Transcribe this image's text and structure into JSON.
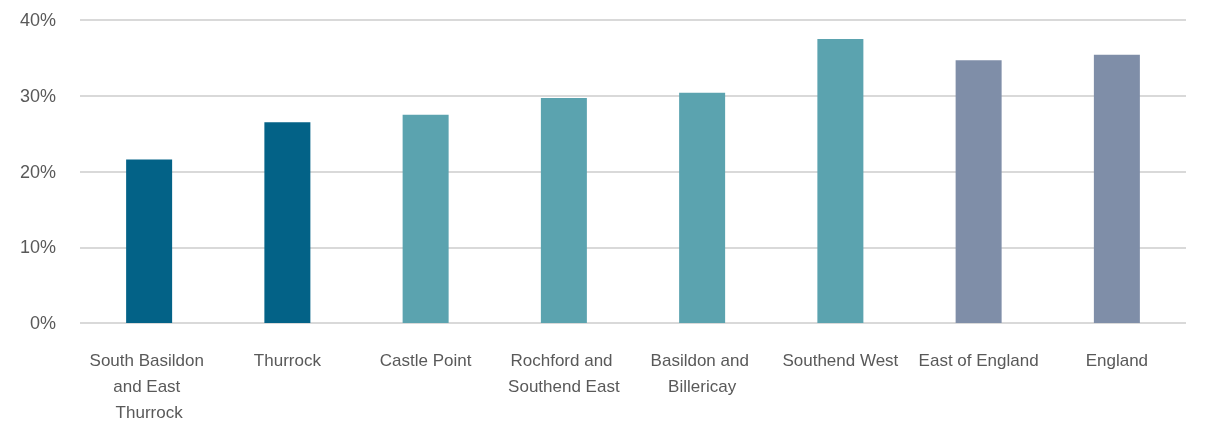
{
  "chart_data": {
    "type": "bar",
    "categories": [
      "South Basildon and East Thurrock",
      "Thurrock",
      "Castle Point",
      "Rochford and Southend East",
      "Basildon and Billericay",
      "Southend West",
      "East of England",
      "England"
    ],
    "values": [
      21.6,
      26.5,
      27.5,
      29.7,
      30.4,
      37.5,
      34.7,
      35.4
    ],
    "colors": [
      "#036287",
      "#036287",
      "#5ba3af",
      "#5ba3af",
      "#5ba3af",
      "#5ba3af",
      "#7f8ea8",
      "#7f8ea8"
    ],
    "ylim": [
      0,
      40
    ],
    "yticks": [
      {
        "value": 0,
        "label": "0%"
      },
      {
        "value": 10,
        "label": "10%"
      },
      {
        "value": 20,
        "label": "20%"
      },
      {
        "value": 30,
        "label": "30%"
      },
      {
        "value": 40,
        "label": "40%"
      }
    ],
    "grid": "y"
  }
}
